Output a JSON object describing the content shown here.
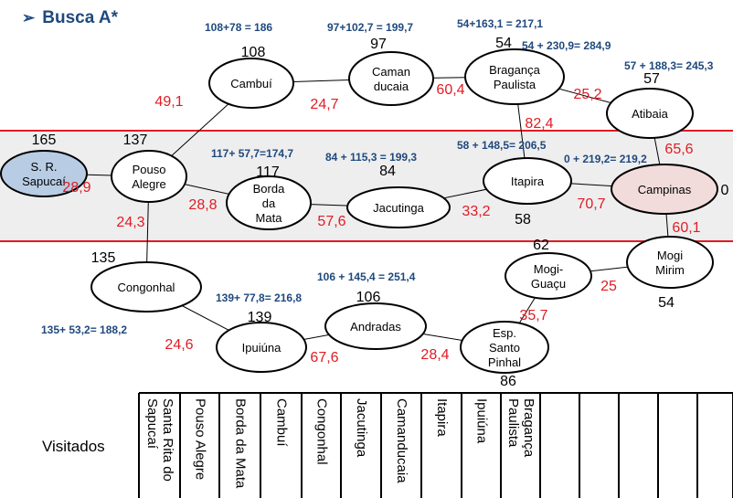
{
  "title": "Busca A*",
  "title_bullet": "➢",
  "visitados_label": "Visitados",
  "colors": {
    "band_fill": "#eeeeee",
    "band_line": "#e21b23",
    "edge_weight": "#e21b23",
    "formula": "#1f497d",
    "sapucai_fill": "#b8cce4",
    "campinas_fill": "#f2dcdb"
  },
  "nodes": [
    {
      "id": "sapucai",
      "lines": [
        "S. R.",
        "Sapucaí"
      ],
      "h": "165"
    },
    {
      "id": "pouso",
      "lines": [
        "Pouso",
        "Alegre"
      ],
      "h": "137"
    },
    {
      "id": "cambui",
      "lines": [
        "Cambuí"
      ],
      "h": "108"
    },
    {
      "id": "camanducaia",
      "lines": [
        "Caman",
        "ducaia"
      ],
      "h": "97"
    },
    {
      "id": "braganca",
      "lines": [
        "Bragança",
        "Paulista"
      ],
      "h": "54"
    },
    {
      "id": "atibaia",
      "lines": [
        "Atibaia"
      ],
      "h": "57"
    },
    {
      "id": "borda",
      "lines": [
        "Borda",
        "da",
        "Mata"
      ],
      "h": "117"
    },
    {
      "id": "jacutinga",
      "lines": [
        "Jacutinga"
      ],
      "h": "84"
    },
    {
      "id": "itapira",
      "lines": [
        "Itapira"
      ],
      "h": "58"
    },
    {
      "id": "campinas",
      "lines": [
        "Campinas"
      ],
      "h": "0"
    },
    {
      "id": "congonhal",
      "lines": [
        "Congonhal"
      ],
      "h": "135"
    },
    {
      "id": "ipuiuna",
      "lines": [
        "Ipuiúna"
      ],
      "h": "139"
    },
    {
      "id": "andradas",
      "lines": [
        "Andradas"
      ],
      "h": "106"
    },
    {
      "id": "espirito",
      "lines": [
        "Esp.",
        "Santo",
        "Pinhal"
      ],
      "h": "86"
    },
    {
      "id": "mogiguacu",
      "lines": [
        "Mogi-",
        "Guaçu"
      ],
      "h": "62"
    },
    {
      "id": "mogimirim",
      "lines": [
        "Mogi",
        "Mirim"
      ],
      "h": "54"
    }
  ],
  "edges": [
    {
      "from": "sapucai",
      "to": "pouso",
      "w": "28,9"
    },
    {
      "from": "pouso",
      "to": "cambui",
      "w": "49,1"
    },
    {
      "from": "pouso",
      "to": "borda",
      "w": "28,8"
    },
    {
      "from": "pouso",
      "to": "congonhal",
      "w": "24,3"
    },
    {
      "from": "cambui",
      "to": "camanducaia",
      "w": "24,7"
    },
    {
      "from": "camanducaia",
      "to": "braganca",
      "w": "60,4"
    },
    {
      "from": "braganca",
      "to": "atibaia",
      "w": "25,2"
    },
    {
      "from": "braganca",
      "to": "itapira",
      "w": "82,4"
    },
    {
      "from": "atibaia",
      "to": "campinas",
      "w": "65,6"
    },
    {
      "from": "borda",
      "to": "jacutinga",
      "w": "57,6"
    },
    {
      "from": "jacutinga",
      "to": "itapira",
      "w": "33,2"
    },
    {
      "from": "itapira",
      "to": "campinas",
      "w": "70,7"
    },
    {
      "from": "campinas",
      "to": "mogimirim",
      "w": "60,1"
    },
    {
      "from": "mogimirim",
      "to": "mogiguacu",
      "w": "25"
    },
    {
      "from": "mogiguacu",
      "to": "espirito",
      "w": "35,7"
    },
    {
      "from": "espirito",
      "to": "andradas",
      "w": "28,4"
    },
    {
      "from": "andradas",
      "to": "ipuiuna",
      "w": "67,6"
    },
    {
      "from": "ipuiuna",
      "to": "congonhal",
      "w": "24,6"
    }
  ],
  "formulas": [
    "108+78 = 186",
    "97+102,7 = 199,7",
    "54+163,1 = 217,1",
    "54 + 230,9= 284,9",
    "57 + 188,3= 245,3",
    "117+ 57,7=174,7",
    "84 + 115,3 = 199,3",
    "58 + 148,5= 206,5",
    "0 + 219,2= 219,2",
    "106 + 145,4 = 251,4",
    "139+ 77,8= 216,8",
    "135+ 53,2= 188,2"
  ],
  "visitados": [
    "Santa Rita do Sapucaí",
    "Pouso Alegre",
    "Borda da Mata",
    "Cambuí",
    "Congonhal",
    "Jacutinga",
    "Camanducaia",
    "Itapira",
    "Ipuiúna",
    "Bragança Paulista",
    "",
    "",
    "",
    "",
    ""
  ]
}
